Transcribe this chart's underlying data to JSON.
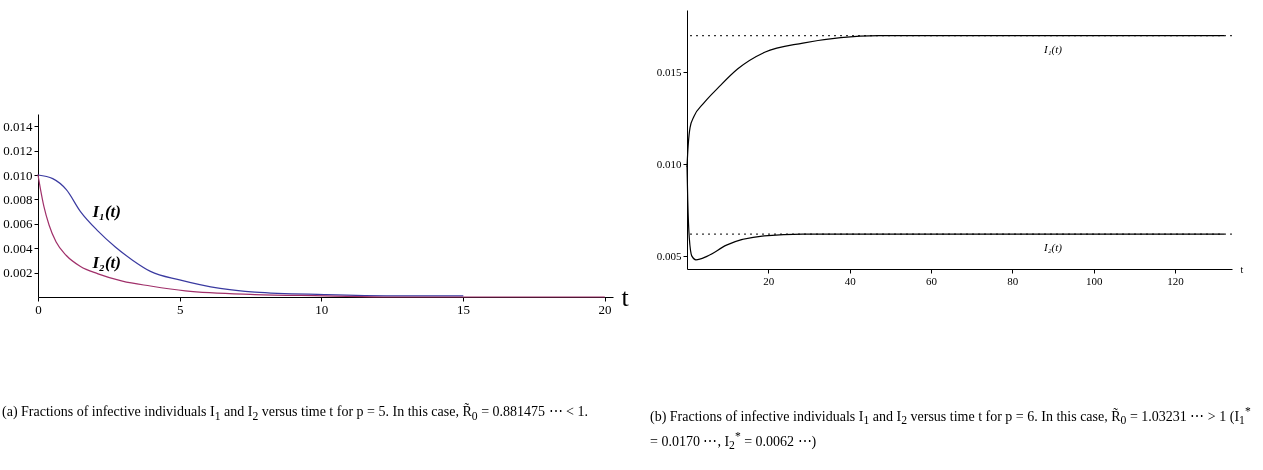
{
  "chart_data": [
    {
      "type": "line",
      "title": "(a) Fractions of infective individuals I$_{1}$ and I$_{2}$ versus time t for p = 5. In this case, R̃$_{0}$ = 0.881475 ⋯ < 1.",
      "xlabel": "t",
      "xlim": [
        0,
        20.3
      ],
      "ylim": [
        0,
        0.015
      ],
      "xticks": [
        0,
        5,
        10,
        15,
        20
      ],
      "yticks": [
        {
          "value": 0.002,
          "label": "0.002"
        },
        {
          "value": 0.004,
          "label": "0.004"
        },
        {
          "value": 0.006,
          "label": "0.006"
        },
        {
          "value": 0.008,
          "label": "0.008"
        },
        {
          "value": 0.01,
          "label": "0.010"
        },
        {
          "value": 0.012,
          "label": "0.012"
        },
        {
          "value": 0.014,
          "label": "0.014"
        }
      ],
      "grid": false,
      "legend": false,
      "marker": "none",
      "line_style": "solid",
      "series": [
        {
          "name": "I₁(t)",
          "color": "#3a3aa0",
          "x": [
            0,
            0.52,
            1.0,
            1.5,
            2.12,
            2.73,
            3.35,
            3.97,
            5.0,
            6.43,
            7.66,
            10.1,
            12.5,
            15
          ],
          "values": [
            0.01,
            0.0097,
            0.0088,
            0.007,
            0.0054,
            0.0041,
            0.003,
            0.0021,
            0.0014,
            0.0007,
            0.0004,
            0.0002,
            0.0001,
            0.0001
          ]
        },
        {
          "name": "I₂(t)",
          "color": "#a0306a",
          "x": [
            0,
            0.09,
            0.21,
            0.39,
            0.64,
            1.0,
            1.5,
            2.12,
            2.98,
            3.97,
            5.2,
            7.66,
            10.1,
            12.5,
            15,
            17.5,
            20
          ],
          "values": [
            0.01,
            0.0088,
            0.0074,
            0.0059,
            0.0045,
            0.0034,
            0.0025,
            0.0019,
            0.0013,
            0.0009,
            0.0005,
            0.0002,
            0.0001,
            0,
            0,
            0,
            0
          ]
        }
      ]
    },
    {
      "type": "line",
      "title": "(b) Fractions of infective individuals I$_{1}$ and I$_{2}$ versus time t for p = 6. In this case, R̃$_{0}$ = 1.03231 ⋯ > 1 (I$_{1}$$^{*}$ = 0.0170 ⋯, I$_{2}$$^{*}$ = 0.0062 ⋯)",
      "xlabel": "t",
      "xlim": [
        0,
        134
      ],
      "ylim": [
        0.0043,
        0.0184
      ],
      "xticks": [
        20,
        40,
        60,
        80,
        100,
        120
      ],
      "yticks": [
        {
          "value": 0.005,
          "label": "0.005"
        },
        {
          "value": 0.01,
          "label": "0.010"
        },
        {
          "value": 0.015,
          "label": "0.015"
        }
      ],
      "grid": false,
      "legend": false,
      "marker": "none",
      "line_style": "solid",
      "series": [
        {
          "name": "I₁(t)",
          "color": "#000000",
          "x": [
            0,
            0.28,
            0.75,
            1.7,
            4.0,
            7.8,
            12.5,
            19.1,
            28.5,
            37.8,
            47.2,
            56.6,
            80,
            110,
            132
          ],
          "values": [
            0.0099,
            0.011,
            0.012,
            0.0126,
            0.0133,
            0.0142,
            0.0152,
            0.0161,
            0.0166,
            0.0169,
            0.017,
            0.017,
            0.017,
            0.017,
            0.017
          ]
        },
        {
          "name": "I₂(t)",
          "color": "#000000",
          "x": [
            0,
            0.19,
            0.56,
            1.2,
            2.2,
            5.0,
            9.7,
            19.0,
            28.5,
            40,
            60,
            90,
            132
          ],
          "values": [
            0.0099,
            0.008,
            0.006,
            0.005,
            0.0048,
            0.005,
            0.0056,
            0.0061,
            0.0062,
            0.0062,
            0.0062,
            0.0062,
            0.0062
          ]
        }
      ],
      "ref_lines": [
        {
          "axis": "y",
          "value": 0.017,
          "color": "#000000",
          "line_style": "dotted"
        },
        {
          "axis": "y",
          "value": 0.0062,
          "color": "#000000",
          "line_style": "dotted"
        }
      ]
    }
  ]
}
